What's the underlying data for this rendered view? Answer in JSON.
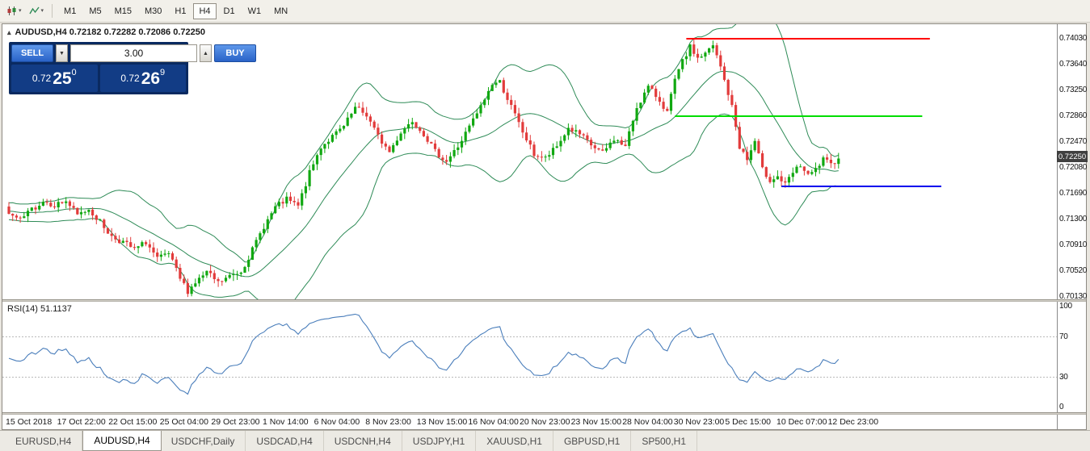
{
  "toolbar": {
    "timeframes": [
      "M1",
      "M5",
      "M15",
      "M30",
      "H1",
      "H4",
      "D1",
      "W1",
      "MN"
    ],
    "active_timeframe": "H4"
  },
  "chart": {
    "header": "AUDUSD,H4 0.72182 0.72282 0.72086 0.72250",
    "symbol": "AUDUSD",
    "timeframe": "H4",
    "trade_panel": {
      "sell_label": "SELL",
      "buy_label": "BUY",
      "lot_size": "3.00",
      "sell_price_prefix": "0.72",
      "sell_price_big": "25",
      "sell_price_sup": "0",
      "buy_price_prefix": "0.72",
      "buy_price_big": "26",
      "buy_price_sup": "9"
    },
    "current_price_tag": "0.72250",
    "price_axis_labels": [
      "0.74030",
      "0.73640",
      "0.73250",
      "0.72860",
      "0.72470",
      "0.72080",
      "0.71690",
      "0.71300",
      "0.70910",
      "0.70520",
      "0.70130"
    ],
    "time_axis_labels": [
      "15 Oct 2018",
      "17 Oct 22:00",
      "22 Oct 15:00",
      "25 Oct 04:00",
      "29 Oct 23:00",
      "1 Nov 14:00",
      "6 Nov 04:00",
      "8 Nov 23:00",
      "13 Nov 15:00",
      "16 Nov 04:00",
      "20 Nov 23:00",
      "23 Nov 15:00",
      "28 Nov 04:00",
      "30 Nov 23:00",
      "5 Dec 15:00",
      "10 Dec 07:00",
      "12 Dec 23:00"
    ]
  },
  "chart_data": {
    "type": "candlestick",
    "symbol": "AUDUSD",
    "timeframe": "H4",
    "current_bar": {
      "open": 0.72182,
      "high": 0.72282,
      "low": 0.72086,
      "close": 0.7225
    },
    "last_price": 0.7225,
    "y_axis": {
      "min": 0.7013,
      "max": 0.7403,
      "tick_step": 0.0039
    },
    "candle_count": 219,
    "colors": {
      "up": "#11a811",
      "down": "#e23b3b"
    },
    "bollinger": {
      "period": 20,
      "deviation": 2,
      "color": "#2e8b57"
    },
    "close_waypoints": [
      [
        0,
        0.7138
      ],
      [
        3,
        0.7128
      ],
      [
        6,
        0.7145
      ],
      [
        9,
        0.7158
      ],
      [
        12,
        0.7152
      ],
      [
        15,
        0.7158
      ],
      [
        18,
        0.7136
      ],
      [
        21,
        0.7146
      ],
      [
        24,
        0.7126
      ],
      [
        27,
        0.7104
      ],
      [
        30,
        0.7096
      ],
      [
        33,
        0.7084
      ],
      [
        36,
        0.7096
      ],
      [
        39,
        0.707
      ],
      [
        42,
        0.7078
      ],
      [
        45,
        0.704
      ],
      [
        47,
        0.7022
      ],
      [
        49,
        0.7035
      ],
      [
        52,
        0.705
      ],
      [
        55,
        0.7034
      ],
      [
        58,
        0.7044
      ],
      [
        61,
        0.7052
      ],
      [
        64,
        0.7084
      ],
      [
        67,
        0.712
      ],
      [
        70,
        0.7148
      ],
      [
        73,
        0.716
      ],
      [
        76,
        0.715
      ],
      [
        79,
        0.72
      ],
      [
        82,
        0.724
      ],
      [
        85,
        0.7255
      ],
      [
        88,
        0.727
      ],
      [
        91,
        0.7298
      ],
      [
        94,
        0.7288
      ],
      [
        97,
        0.7255
      ],
      [
        100,
        0.7232
      ],
      [
        103,
        0.7262
      ],
      [
        106,
        0.728
      ],
      [
        109,
        0.726
      ],
      [
        112,
        0.7232
      ],
      [
        115,
        0.7218
      ],
      [
        118,
        0.724
      ],
      [
        121,
        0.727
      ],
      [
        124,
        0.73
      ],
      [
        127,
        0.7335
      ],
      [
        129,
        0.7338
      ],
      [
        132,
        0.73
      ],
      [
        135,
        0.7262
      ],
      [
        138,
        0.7228
      ],
      [
        141,
        0.7222
      ],
      [
        144,
        0.724
      ],
      [
        147,
        0.7268
      ],
      [
        150,
        0.7258
      ],
      [
        153,
        0.7242
      ],
      [
        156,
        0.723
      ],
      [
        159,
        0.7252
      ],
      [
        162,
        0.724
      ],
      [
        165,
        0.73
      ],
      [
        168,
        0.733
      ],
      [
        171,
        0.731
      ],
      [
        173,
        0.7292
      ],
      [
        175,
        0.734
      ],
      [
        177,
        0.7368
      ],
      [
        179,
        0.739
      ],
      [
        181,
        0.7374
      ],
      [
        183,
        0.738
      ],
      [
        185,
        0.7392
      ],
      [
        187,
        0.736
      ],
      [
        188,
        0.734
      ],
      [
        190,
        0.73
      ],
      [
        192,
        0.724
      ],
      [
        194,
        0.722
      ],
      [
        196,
        0.7248
      ],
      [
        198,
        0.7205
      ],
      [
        200,
        0.719
      ],
      [
        202,
        0.7195
      ],
      [
        204,
        0.7182
      ],
      [
        206,
        0.72
      ],
      [
        208,
        0.7212
      ],
      [
        210,
        0.7195
      ],
      [
        212,
        0.7205
      ],
      [
        214,
        0.722
      ],
      [
        216,
        0.7212
      ],
      [
        218,
        0.7225
      ]
    ],
    "horizontal_lines": [
      {
        "name": "resistance-line-red",
        "color": "#ff0000",
        "price": 0.7403,
        "i1": 178,
        "i2": 242
      },
      {
        "name": "resistance-line-green",
        "color": "#00dd00",
        "price": 0.7286,
        "i1": 175,
        "i2": 240
      },
      {
        "name": "support-line-blue",
        "color": "#0000ee",
        "price": 0.718,
        "i1": 203,
        "i2": 245
      }
    ]
  },
  "rsi": {
    "label": "RSI(14) 51.1137",
    "period": 14,
    "value": 51.1137,
    "line_color": "#4a7ebb",
    "dotted_levels": [
      70,
      30
    ],
    "scale": [
      {
        "label": "100",
        "value": 100
      },
      {
        "label": "70",
        "value": 70
      },
      {
        "label": "30",
        "value": 30
      },
      {
        "label": "0",
        "value": 0
      }
    ]
  },
  "tabs": {
    "items": [
      "EURUSD,H4",
      "AUDUSD,H4",
      "USDCHF,Daily",
      "USDCAD,H4",
      "USDCNH,H4",
      "USDJPY,H1",
      "XAUUSD,H1",
      "GBPUSD,H1",
      "SP500,H1"
    ],
    "active": "AUDUSD,H4"
  }
}
